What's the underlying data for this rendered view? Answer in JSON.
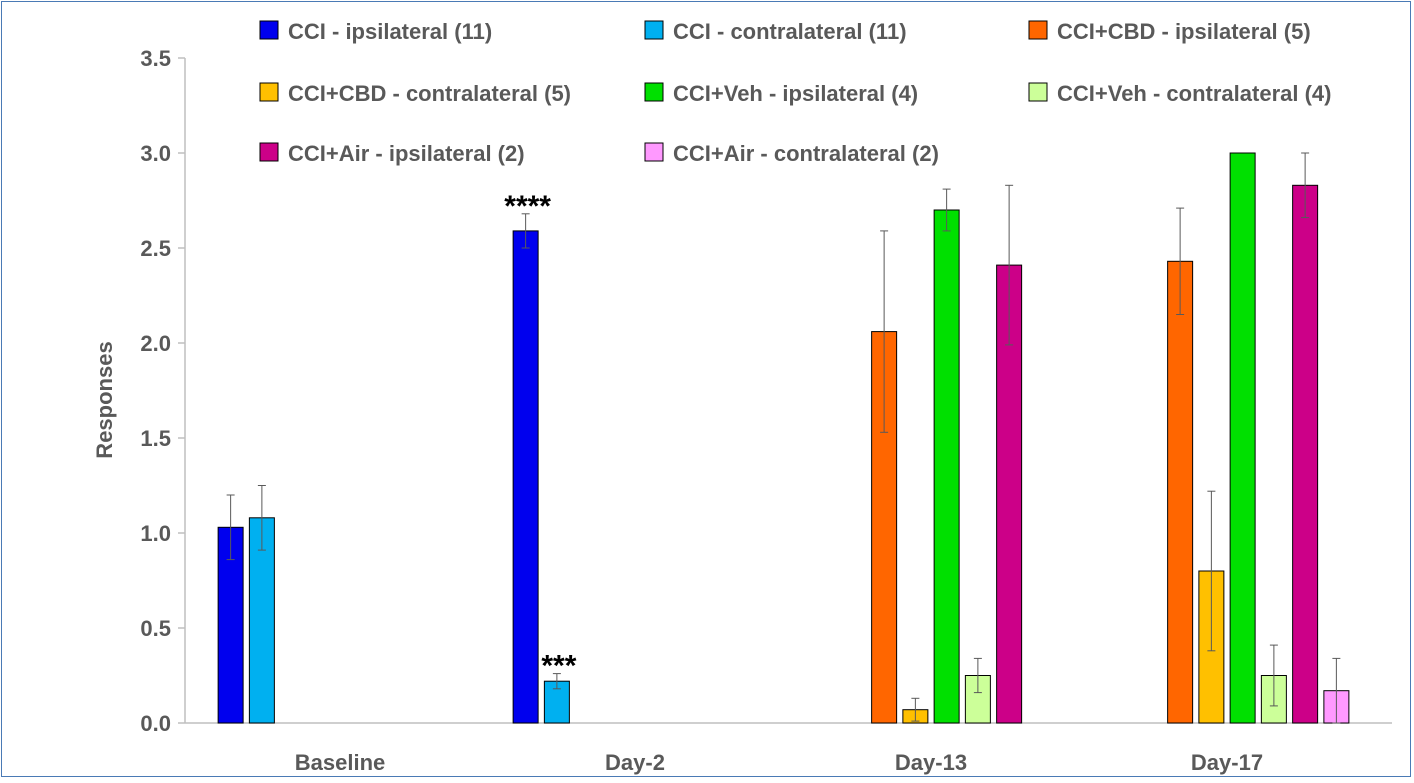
{
  "chart_data": {
    "type": "bar",
    "ylabel": "Responses",
    "xlabel": "",
    "ylim": [
      0,
      3.5
    ],
    "yticks": [
      "0.0",
      "0.5",
      "1.0",
      "1.5",
      "2.0",
      "2.5",
      "3.0",
      "3.5"
    ],
    "grid": false,
    "legend_position": "top",
    "categories": [
      "Baseline",
      "Day-2",
      "Day-13",
      "Day-17"
    ],
    "series": [
      {
        "name": "CCI - ipsilateral (11)",
        "color": "#0000ee",
        "values": [
          1.03,
          2.59,
          null,
          null
        ],
        "errors": [
          0.17,
          0.09,
          null,
          null
        ]
      },
      {
        "name": "CCI - contralateral (11)",
        "color": "#00b0f0",
        "values": [
          1.08,
          0.22,
          null,
          null
        ],
        "errors": [
          0.17,
          0.04,
          null,
          null
        ]
      },
      {
        "name": "CCI+CBD - ipsilateral (5)",
        "color": "#ff6600",
        "values": [
          null,
          null,
          2.06,
          2.43
        ],
        "errors": [
          null,
          null,
          0.53,
          0.28
        ]
      },
      {
        "name": "CCI+CBD - contralateral (5)",
        "color": "#ffc000",
        "values": [
          null,
          null,
          0.07,
          0.8
        ],
        "errors": [
          null,
          null,
          0.06,
          0.42
        ]
      },
      {
        "name": "CCI+Veh - ipsilateral (4)",
        "color": "#00e000",
        "values": [
          null,
          null,
          2.7,
          3.0
        ],
        "errors": [
          null,
          null,
          0.11,
          0
        ]
      },
      {
        "name": "CCI+Veh - contralateral (4)",
        "color": "#ccff99",
        "values": [
          null,
          null,
          0.25,
          0.25
        ],
        "errors": [
          null,
          null,
          0.09,
          0.16
        ]
      },
      {
        "name": "CCI+Air - ipsilateral (2)",
        "color": "#cc0088",
        "values": [
          null,
          null,
          2.41,
          2.83
        ],
        "errors": [
          null,
          null,
          0.42,
          0.17
        ]
      },
      {
        "name": "CCI+Air - contralateral (2)",
        "color": "#ff99ff",
        "values": [
          null,
          null,
          null,
          0.17
        ],
        "errors": [
          null,
          null,
          null,
          0.17
        ]
      }
    ],
    "annotations": [
      {
        "text": "****",
        "category": "Day-2",
        "series": 0
      },
      {
        "text": "***",
        "category": "Day-2",
        "series": 1
      }
    ]
  }
}
